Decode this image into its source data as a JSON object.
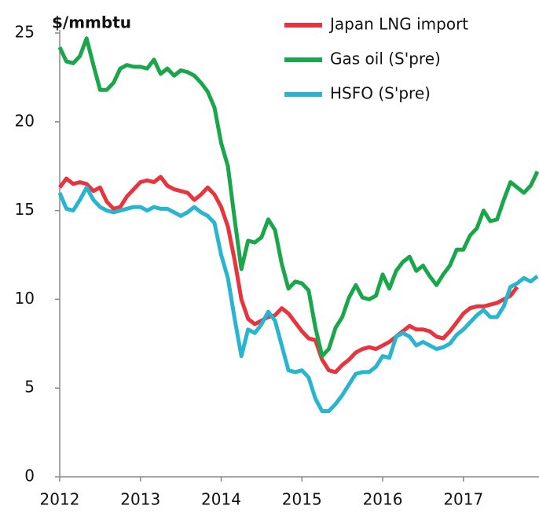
{
  "chart_data": {
    "type": "line",
    "y_label": "$/mmbtu",
    "x": [
      2012.0,
      2012.083,
      2012.167,
      2012.25,
      2012.333,
      2012.417,
      2012.5,
      2012.583,
      2012.667,
      2012.75,
      2012.833,
      2012.917,
      2013.0,
      2013.083,
      2013.167,
      2013.25,
      2013.333,
      2013.417,
      2013.5,
      2013.583,
      2013.667,
      2013.75,
      2013.833,
      2013.917,
      2014.0,
      2014.083,
      2014.167,
      2014.25,
      2014.333,
      2014.417,
      2014.5,
      2014.583,
      2014.667,
      2014.75,
      2014.833,
      2014.917,
      2015.0,
      2015.083,
      2015.167,
      2015.25,
      2015.333,
      2015.417,
      2015.5,
      2015.583,
      2015.667,
      2015.75,
      2015.833,
      2015.917,
      2016.0,
      2016.083,
      2016.167,
      2016.25,
      2016.333,
      2016.417,
      2016.5,
      2016.583,
      2016.667,
      2016.75,
      2016.833,
      2016.917,
      2017.0,
      2017.083,
      2017.167,
      2017.25,
      2017.333,
      2017.417,
      2017.5,
      2017.583,
      2017.667,
      2017.75,
      2017.833,
      2017.917
    ],
    "series": [
      {
        "name": "Japan LNG import",
        "color": "#e8343f",
        "values": [
          16.3,
          16.8,
          16.5,
          16.6,
          16.5,
          16.1,
          16.3,
          15.5,
          15.1,
          15.2,
          15.8,
          16.2,
          16.6,
          16.7,
          16.6,
          16.9,
          16.4,
          16.2,
          16.1,
          16.0,
          15.6,
          15.9,
          16.3,
          15.9,
          15.2,
          14.1,
          12.2,
          10.0,
          8.9,
          8.6,
          8.8,
          9.0,
          9.1,
          9.5,
          9.2,
          8.7,
          8.2,
          7.8,
          7.7,
          6.6,
          6.0,
          5.9,
          6.3,
          6.6,
          7.0,
          7.2,
          7.3,
          7.2,
          7.4,
          7.6,
          7.9,
          8.2,
          8.5,
          8.3,
          8.3,
          8.2,
          7.9,
          7.8,
          8.2,
          8.7,
          9.2,
          9.5,
          9.6,
          9.6,
          9.7,
          9.8,
          10.0,
          10.2,
          10.7,
          null,
          null,
          null
        ]
      },
      {
        "name": "Gas oil (S'pre)",
        "color": "#1aa64a",
        "values": [
          24.2,
          23.4,
          23.3,
          23.7,
          24.7,
          23.2,
          21.8,
          21.8,
          22.2,
          23.0,
          23.2,
          23.1,
          23.1,
          23.0,
          23.5,
          22.7,
          23.0,
          22.6,
          22.9,
          22.8,
          22.6,
          22.2,
          21.7,
          20.8,
          18.8,
          17.5,
          14.5,
          11.7,
          13.3,
          13.2,
          13.5,
          14.5,
          13.9,
          12.0,
          10.6,
          11.0,
          10.9,
          10.5,
          8.4,
          6.8,
          7.2,
          8.4,
          9.0,
          10.1,
          10.8,
          10.1,
          10.0,
          10.2,
          11.4,
          10.6,
          11.6,
          12.1,
          12.4,
          11.6,
          11.9,
          11.3,
          10.8,
          11.4,
          11.9,
          12.8,
          12.8,
          13.6,
          14.0,
          15.0,
          14.4,
          14.5,
          15.6,
          16.6,
          16.3,
          16.0,
          16.4,
          17.2
        ]
      },
      {
        "name": "HSFO (S'pre)",
        "color": "#29b5d0",
        "values": [
          16.0,
          15.1,
          15.0,
          15.6,
          16.3,
          15.6,
          15.2,
          15.0,
          14.9,
          15.0,
          15.1,
          15.2,
          15.2,
          15.0,
          15.2,
          15.1,
          15.1,
          14.9,
          14.7,
          14.9,
          15.2,
          14.9,
          14.7,
          14.3,
          12.5,
          11.2,
          8.9,
          6.8,
          8.3,
          8.1,
          8.6,
          9.3,
          8.8,
          7.4,
          6.0,
          5.9,
          6.0,
          5.6,
          4.4,
          3.7,
          3.7,
          4.1,
          4.6,
          5.2,
          5.8,
          5.9,
          5.9,
          6.2,
          6.8,
          6.7,
          7.9,
          8.1,
          7.9,
          7.4,
          7.6,
          7.4,
          7.2,
          7.3,
          7.5,
          8.0,
          8.3,
          8.7,
          9.1,
          9.4,
          9.0,
          9.0,
          9.6,
          10.7,
          10.9,
          11.2,
          11.0,
          11.3
        ]
      }
    ],
    "xlim": [
      2012,
      2017.917
    ],
    "xticks": [
      2012,
      2013,
      2014,
      2015,
      2016,
      2017
    ],
    "ylim": [
      0,
      25
    ],
    "yticks": [
      0,
      5,
      10,
      15,
      20,
      25
    ],
    "grid": false,
    "legend": "top-right"
  }
}
